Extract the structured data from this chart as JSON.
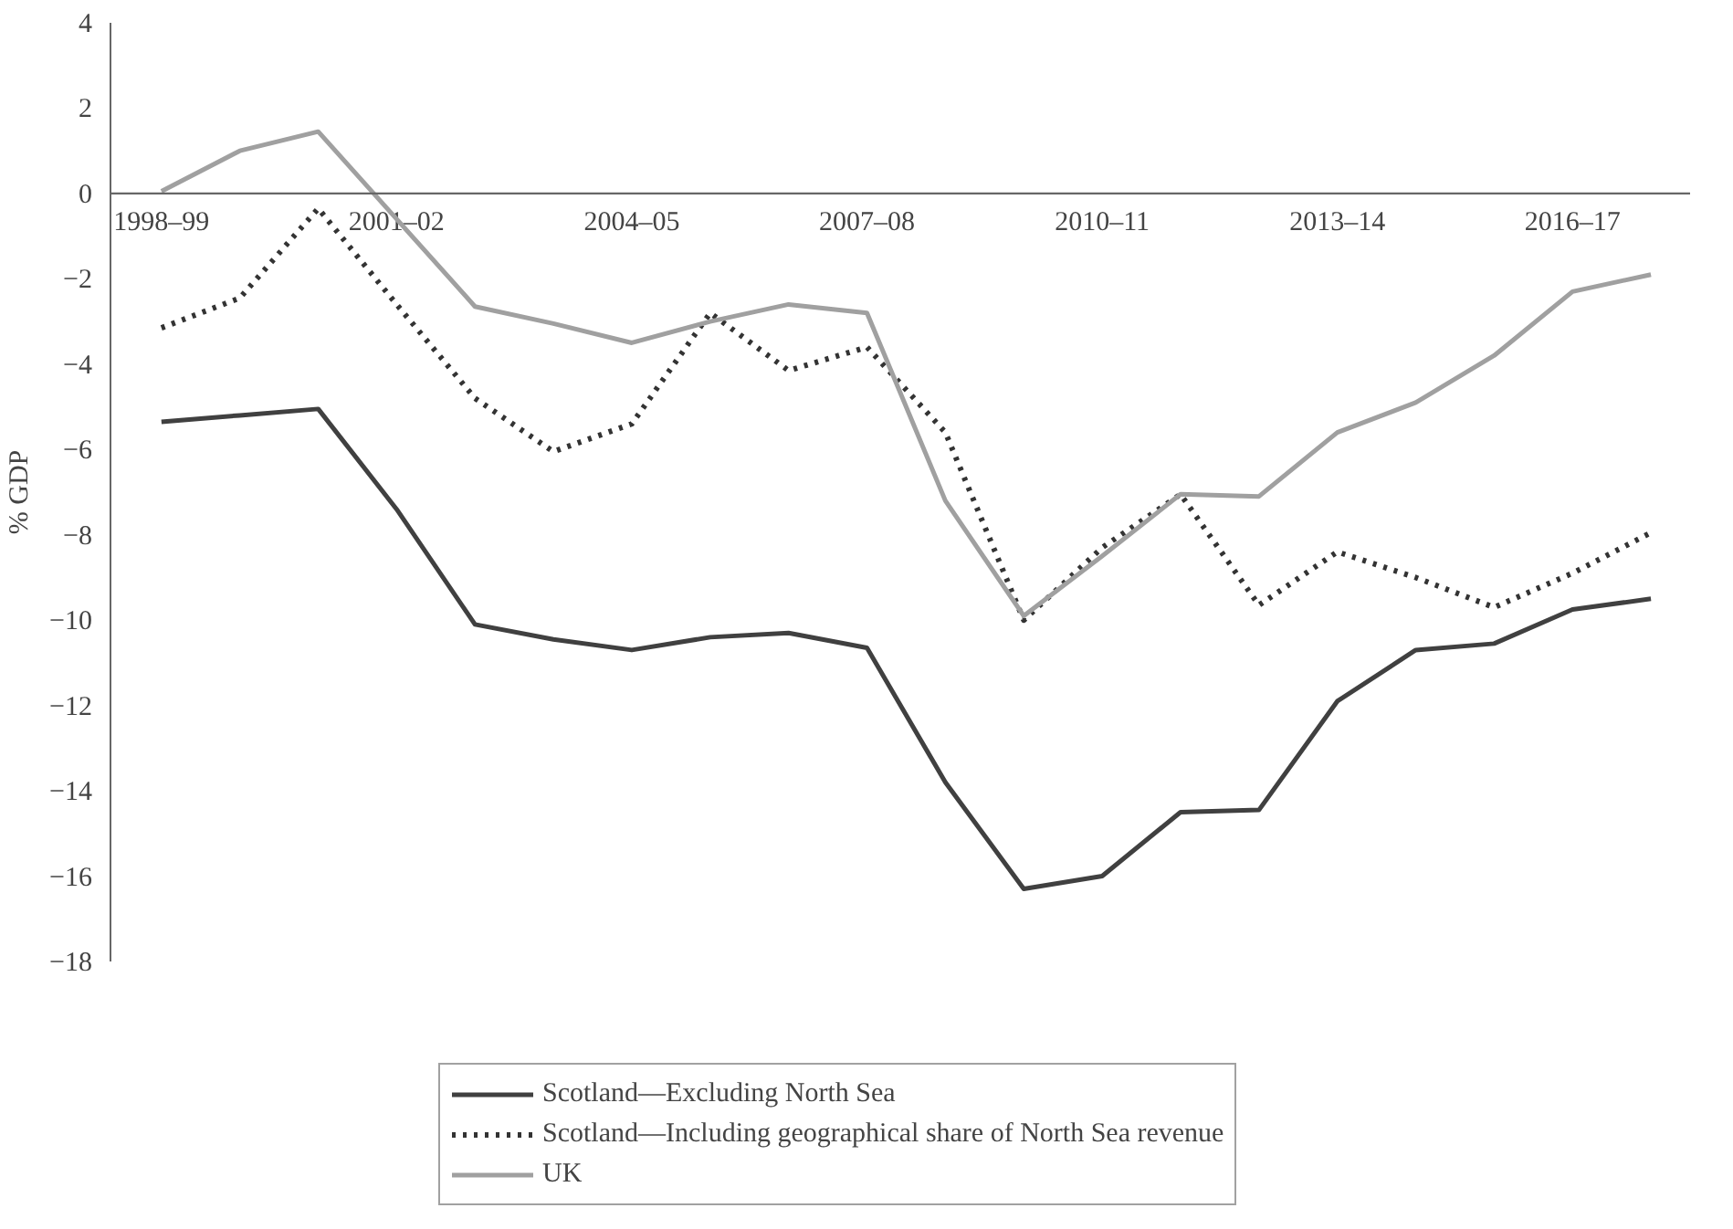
{
  "chart_data": {
    "type": "line",
    "ylabel": "% GDP",
    "categories": [
      "1998–99",
      null,
      null,
      "2001–02",
      null,
      null,
      "2004–05",
      null,
      null,
      "2007–08",
      null,
      null,
      "2010–11",
      null,
      null,
      "2013–14",
      null,
      null,
      "2016–17",
      null
    ],
    "series": [
      {
        "name": "Scotland—Excluding North Sea",
        "color": "#404040",
        "line_style": "solid",
        "values": [
          -5.35,
          -5.2,
          -5.05,
          -7.4,
          -10.1,
          -10.45,
          -10.7,
          -10.4,
          -10.3,
          -10.65,
          -13.8,
          -16.3,
          -16.0,
          -14.5,
          -14.45,
          -11.9,
          -10.7,
          -10.55,
          -9.75,
          -9.5
        ]
      },
      {
        "name": "Scotland—Including geographical share of North Sea revenue",
        "color": "#333333",
        "line_style": "dotted",
        "values": [
          -3.15,
          -2.45,
          -0.35,
          -2.6,
          -4.8,
          -6.05,
          -5.4,
          -2.8,
          -4.15,
          -3.6,
          -5.6,
          -10.0,
          -8.3,
          -7.05,
          -9.65,
          -8.4,
          -9.0,
          -9.7,
          -8.9,
          -7.95
        ]
      },
      {
        "name": "UK",
        "color": "#a0a0a0",
        "line_style": "solid",
        "values": [
          0.05,
          1.0,
          1.45,
          -0.6,
          -2.65,
          -3.05,
          -3.5,
          -3.0,
          -2.6,
          -2.8,
          -7.2,
          -9.9,
          -8.5,
          -7.05,
          -7.1,
          -5.6,
          -4.9,
          -3.8,
          -2.3,
          -1.9
        ]
      }
    ],
    "ylim": [
      -18,
      4
    ],
    "yticks": [
      4,
      2,
      0,
      {
        "value": -2,
        "label": "−2"
      },
      {
        "value": -4,
        "label": "−4"
      },
      {
        "value": -6,
        "label": "−6"
      },
      {
        "value": -8,
        "label": "−8"
      },
      {
        "value": -10,
        "label": "−10"
      },
      {
        "value": -12,
        "label": "−12"
      },
      {
        "value": -14,
        "label": "−14"
      },
      {
        "value": -16,
        "label": "−16"
      },
      {
        "value": -18,
        "label": "−18"
      }
    ],
    "grid": false,
    "legend": "bottom",
    "marker": "none"
  }
}
